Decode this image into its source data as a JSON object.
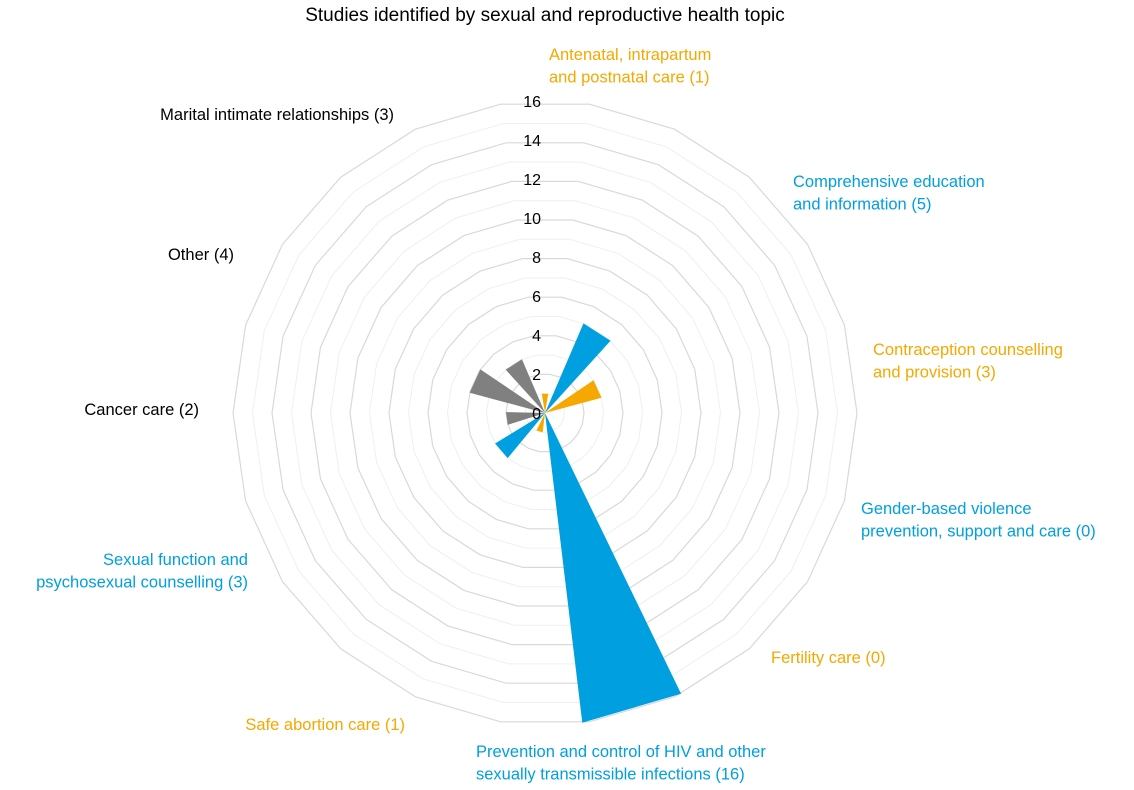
{
  "chart_data": {
    "type": "radial-bar",
    "title": "Studies identified by sexual and reproductive health topic",
    "r_ticks": [
      "0",
      "2",
      "4",
      "6",
      "8",
      "10",
      "12",
      "14",
      "16"
    ],
    "rlim": [
      0,
      16
    ],
    "grid": true,
    "colors": {
      "orange": "#f5a800",
      "blue": "#009fdf",
      "gray": "#808080",
      "black": "#000000"
    },
    "categories": [
      {
        "lines": [
          "Antenatal, intrapartum",
          "and postnatal care (1)"
        ],
        "value": 1,
        "color": "orange"
      },
      {
        "lines": [
          "Comprehensive education",
          "and information (5)"
        ],
        "value": 5,
        "color": "blue"
      },
      {
        "lines": [
          "Contraception counselling",
          "and provision (3)"
        ],
        "value": 3,
        "color": "orange"
      },
      {
        "lines": [
          "Gender-based violence",
          "prevention, support and care (0)"
        ],
        "value": 0,
        "color": "blue"
      },
      {
        "lines": [
          "Fertility care (0)"
        ],
        "value": 0,
        "color": "orange"
      },
      {
        "lines": [
          "Prevention and control of HIV and other",
          "sexually transmissible infections (16)"
        ],
        "value": 16,
        "color": "blue"
      },
      {
        "lines": [
          "Safe abortion care (1)"
        ],
        "value": 1,
        "color": "orange"
      },
      {
        "lines": [
          "Sexual function and",
          "psychosexual counselling (3)"
        ],
        "value": 3,
        "color": "blue"
      },
      {
        "lines": [
          "Cancer care (2)"
        ],
        "value": 2,
        "color": "gray",
        "label_color": "black"
      },
      {
        "lines": [
          "Other (4)"
        ],
        "value": 4,
        "color": "gray",
        "label_color": "black"
      },
      {
        "lines": [
          "Marital intimate relationships (3)"
        ],
        "value": 3,
        "color": "gray",
        "label_color": "black"
      }
    ]
  }
}
